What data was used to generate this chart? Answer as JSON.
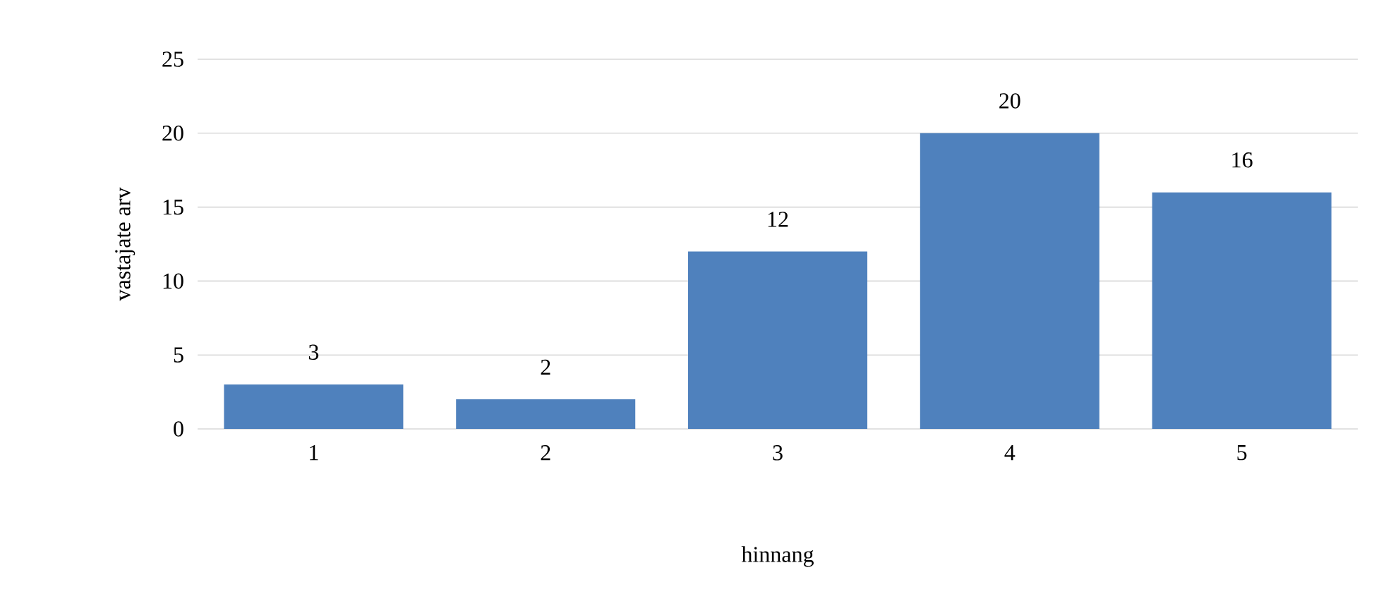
{
  "chart_data": {
    "type": "bar",
    "xlabel": "hinnang",
    "ylabel": "vastajate arv",
    "categories": [
      "1",
      "2",
      "3",
      "4",
      "5"
    ],
    "values": [
      3,
      2,
      12,
      20,
      16
    ],
    "color": "#4f81bd",
    "ylim": [
      0,
      25
    ],
    "yticks": [
      0,
      5,
      10,
      15,
      20,
      25
    ],
    "grid": "y",
    "data_labels": true
  }
}
